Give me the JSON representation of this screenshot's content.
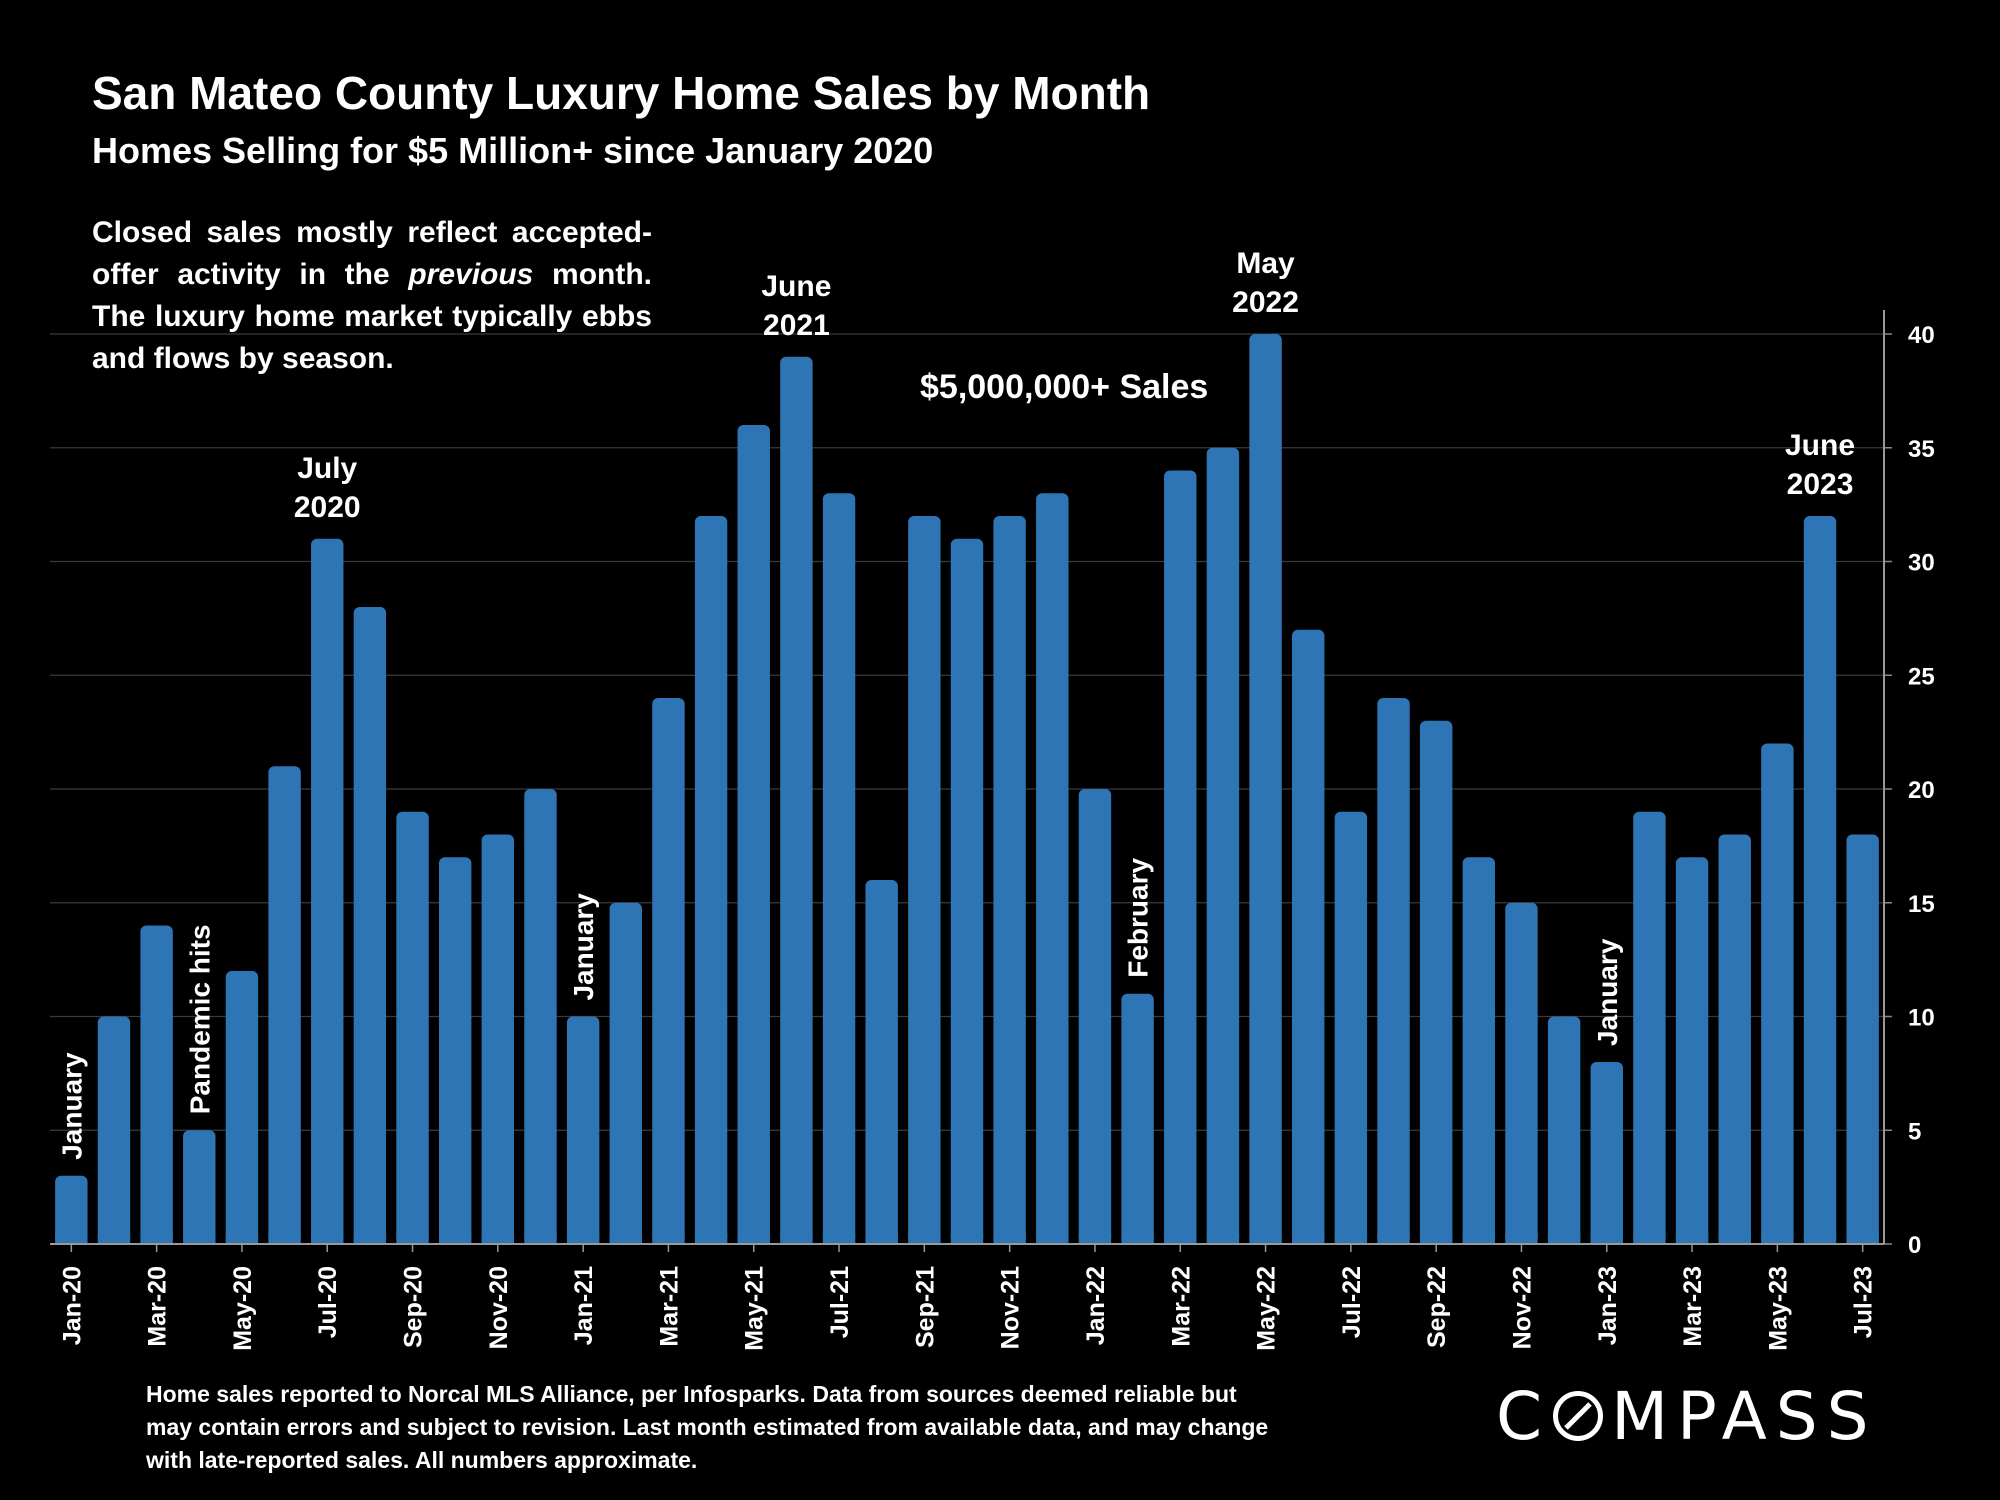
{
  "chart_data": {
    "type": "bar",
    "title": "San Mateo County Luxury Home Sales by Month",
    "subtitle": "Homes Selling for $5 Million+ since January 2020",
    "note": [
      "Closed sales mostly reflect accepted-offer activity in the ",
      "previous",
      " month. The luxury home market typically ebbs and flows by season."
    ],
    "series_label": "$5,000,000+ Sales",
    "bar_color": "#2e75b6",
    "ylim": [
      0,
      40
    ],
    "yticks": [
      0,
      5,
      10,
      15,
      20,
      25,
      30,
      35,
      40
    ],
    "grid": true,
    "categories": [
      "Jan-20",
      "Feb-20",
      "Mar-20",
      "Apr-20",
      "May-20",
      "Jun-20",
      "Jul-20",
      "Aug-20",
      "Sep-20",
      "Oct-20",
      "Nov-20",
      "Dec-20",
      "Jan-21",
      "Feb-21",
      "Mar-21",
      "Apr-21",
      "May-21",
      "Jun-21",
      "Jul-21",
      "Aug-21",
      "Sep-21",
      "Oct-21",
      "Nov-21",
      "Dec-21",
      "Jan-22",
      "Feb-22",
      "Mar-22",
      "Apr-22",
      "May-22",
      "Jun-22",
      "Jul-22",
      "Aug-22",
      "Sep-22",
      "Oct-22",
      "Nov-22",
      "Dec-22",
      "Jan-23",
      "Feb-23",
      "Mar-23",
      "Apr-23",
      "May-23",
      "Jun-23",
      "Jul-23"
    ],
    "xtick_labels": [
      "Jan-20",
      "Mar-20",
      "May-20",
      "Jul-20",
      "Sep-20",
      "Nov-20",
      "Jan-21",
      "Mar-21",
      "May-21",
      "Jul-21",
      "Sep-21",
      "Nov-21",
      "Jan-22",
      "Mar-22",
      "May-22",
      "Jul-22",
      "Sep-22",
      "Nov-22",
      "Jan-23",
      "Mar-23",
      "May-23",
      "Jul-23"
    ],
    "values": [
      3,
      10,
      14,
      5,
      12,
      21,
      31,
      28,
      19,
      17,
      18,
      20,
      10,
      15,
      24,
      32,
      36,
      39,
      33,
      16,
      32,
      31,
      32,
      33,
      20,
      11,
      34,
      35,
      40,
      27,
      19,
      24,
      23,
      17,
      15,
      10,
      8,
      19,
      17,
      18,
      22,
      32,
      18
    ],
    "annotations": [
      {
        "bar": 0,
        "text": "January",
        "rotated": true
      },
      {
        "bar": 3,
        "text": "Pandemic hits",
        "rotated": true
      },
      {
        "bar": 6,
        "text": [
          "July",
          "2020"
        ],
        "rotated": false
      },
      {
        "bar": 12,
        "text": "January",
        "rotated": true
      },
      {
        "bar": 17,
        "text": [
          "June",
          "2021"
        ],
        "rotated": false
      },
      {
        "bar": 25,
        "text": "February",
        "rotated": true
      },
      {
        "bar": 28,
        "text": [
          "May",
          "2022"
        ],
        "rotated": false
      },
      {
        "bar": 36,
        "text": "January",
        "rotated": true
      },
      {
        "bar": 41,
        "text": [
          "June",
          "2023"
        ],
        "rotated": false
      }
    ]
  },
  "footnote": "Home sales reported to Norcal MLS Alliance, per Infosparks. Data from sources deemed reliable but may contain errors and subject to revision.  Last month estimated from available data, and may change with late-reported sales. All numbers approximate.",
  "logo": {
    "before": "C",
    "after": "MPASS"
  }
}
